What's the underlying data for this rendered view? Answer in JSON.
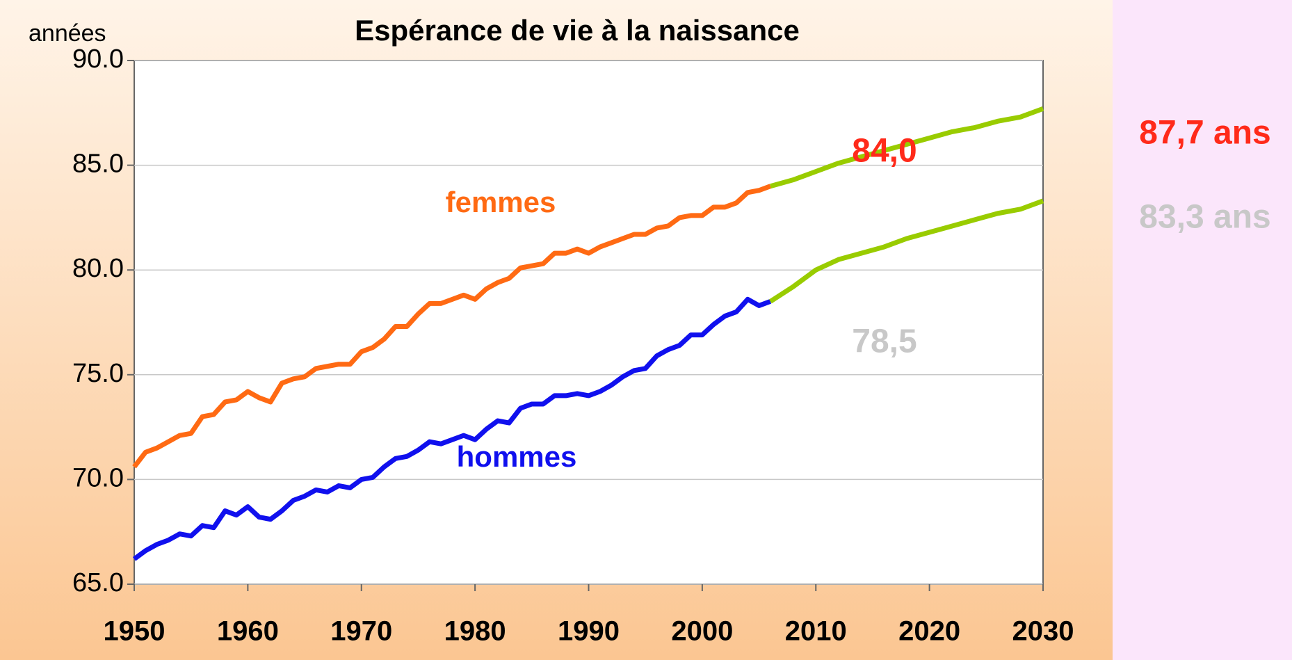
{
  "chart_data": {
    "type": "line",
    "title": "Espérance de vie à la naissance",
    "y_label": "années",
    "xlim": [
      1950,
      2030
    ],
    "xticks": [
      1950,
      1960,
      1970,
      1980,
      1990,
      2000,
      2010,
      2020,
      2030
    ],
    "ylim": [
      65,
      90
    ],
    "yticks": [
      {
        "value": 65,
        "label": "65.0"
      },
      {
        "value": 70,
        "label": "70.0"
      },
      {
        "value": 75,
        "label": "75.0"
      },
      {
        "value": 80,
        "label": "80.0"
      },
      {
        "value": 85,
        "label": "85.0"
      },
      {
        "value": 90,
        "label": "90.0"
      }
    ],
    "grid": true,
    "series": [
      {
        "name": "femmes",
        "color": "#ff6a13",
        "x": [
          1950,
          1951,
          1952,
          1953,
          1954,
          1955,
          1956,
          1957,
          1958,
          1959,
          1960,
          1961,
          1962,
          1963,
          1964,
          1965,
          1966,
          1967,
          1968,
          1969,
          1970,
          1971,
          1972,
          1973,
          1974,
          1975,
          1976,
          1977,
          1978,
          1979,
          1980,
          1981,
          1982,
          1983,
          1984,
          1985,
          1986,
          1987,
          1988,
          1989,
          1990,
          1991,
          1992,
          1993,
          1994,
          1995,
          1996,
          1997,
          1998,
          1999,
          2000,
          2001,
          2002,
          2003,
          2004,
          2005,
          2006
        ],
        "values": [
          70.6,
          71.3,
          71.5,
          71.8,
          72.1,
          72.2,
          73.0,
          73.1,
          73.7,
          73.8,
          74.2,
          73.9,
          73.7,
          74.6,
          74.8,
          74.9,
          75.3,
          75.4,
          75.5,
          75.5,
          76.1,
          76.3,
          76.7,
          77.3,
          77.3,
          77.9,
          78.4,
          78.4,
          78.6,
          78.8,
          78.6,
          79.1,
          79.4,
          79.6,
          80.1,
          80.2,
          80.3,
          80.8,
          80.8,
          81.0,
          80.8,
          81.1,
          81.3,
          81.5,
          81.7,
          81.7,
          82.0,
          82.1,
          82.5,
          82.6,
          82.6,
          83.0,
          83.0,
          83.2,
          83.7,
          83.8,
          84.0
        ]
      },
      {
        "name": "hommes",
        "color": "#1010ee",
        "x": [
          1950,
          1951,
          1952,
          1953,
          1954,
          1955,
          1956,
          1957,
          1958,
          1959,
          1960,
          1961,
          1962,
          1963,
          1964,
          1965,
          1966,
          1967,
          1968,
          1969,
          1970,
          1971,
          1972,
          1973,
          1974,
          1975,
          1976,
          1977,
          1978,
          1979,
          1980,
          1981,
          1982,
          1983,
          1984,
          1985,
          1986,
          1987,
          1988,
          1989,
          1990,
          1991,
          1992,
          1993,
          1994,
          1995,
          1996,
          1997,
          1998,
          1999,
          2000,
          2001,
          2002,
          2003,
          2004,
          2005,
          2006
        ],
        "values": [
          66.2,
          66.6,
          66.9,
          67.1,
          67.4,
          67.3,
          67.8,
          67.7,
          68.5,
          68.3,
          68.7,
          68.2,
          68.1,
          68.5,
          69.0,
          69.2,
          69.5,
          69.4,
          69.7,
          69.6,
          70.0,
          70.1,
          70.6,
          71.0,
          71.1,
          71.4,
          71.8,
          71.7,
          71.9,
          72.1,
          71.9,
          72.4,
          72.8,
          72.7,
          73.4,
          73.6,
          73.6,
          74.0,
          74.0,
          74.1,
          74.0,
          74.2,
          74.5,
          74.9,
          75.2,
          75.3,
          75.9,
          76.2,
          76.4,
          76.9,
          76.9,
          77.4,
          77.8,
          78.0,
          78.6,
          78.3,
          78.5
        ]
      },
      {
        "color": "#99cc00",
        "x": [
          2006,
          2008,
          2010,
          2012,
          2014,
          2016,
          2018,
          2020,
          2022,
          2024,
          2026,
          2028,
          2030
        ],
        "values": [
          84.0,
          84.3,
          84.7,
          85.1,
          85.4,
          85.7,
          86.0,
          86.3,
          86.6,
          86.8,
          87.1,
          87.3,
          87.7
        ]
      },
      {
        "color": "#99cc00",
        "x": [
          2006,
          2008,
          2010,
          2012,
          2014,
          2016,
          2018,
          2020,
          2022,
          2024,
          2026,
          2028,
          2030
        ],
        "values": [
          78.5,
          79.2,
          80.0,
          80.5,
          80.8,
          81.1,
          81.5,
          81.8,
          82.1,
          82.4,
          82.7,
          82.9,
          83.3
        ]
      }
    ],
    "annotations": [
      {
        "text": "femmes",
        "color": "#ff6a13"
      },
      {
        "text": "hommes",
        "color": "#1010ee"
      },
      {
        "text": "84,0",
        "color": "#ff2a1a"
      },
      {
        "text": "78,5",
        "color": "#c8c8c8"
      },
      {
        "text": "87,7 ans",
        "color": "#ff2a1a"
      },
      {
        "text": "83,3 ans",
        "color": "#c8c8c8"
      }
    ]
  }
}
